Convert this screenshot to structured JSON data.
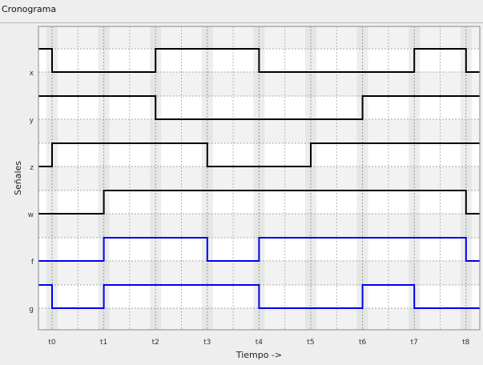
{
  "window": {
    "title": "Cronograma"
  },
  "chart_data": {
    "type": "line",
    "title": "",
    "xlabel": "Tiempo ->",
    "ylabel": "Señales",
    "grid": true,
    "categories": [
      "t0",
      "t1",
      "t2",
      "t3",
      "t4",
      "t5",
      "t6",
      "t7",
      "t8"
    ],
    "series": [
      {
        "name": "x",
        "color": "#000000",
        "initial": 1,
        "values": [
          0,
          0,
          1,
          1,
          0,
          0,
          0,
          1,
          0
        ]
      },
      {
        "name": "y",
        "color": "#000000",
        "initial": 1,
        "values": [
          1,
          1,
          0,
          0,
          0,
          0,
          1,
          1,
          1
        ]
      },
      {
        "name": "z",
        "color": "#000000",
        "initial": 0,
        "values": [
          1,
          1,
          1,
          0,
          0,
          1,
          1,
          1,
          1
        ]
      },
      {
        "name": "w",
        "color": "#000000",
        "initial": 0,
        "values": [
          0,
          1,
          1,
          1,
          1,
          1,
          1,
          1,
          0
        ]
      },
      {
        "name": "f",
        "color": "#0000ee",
        "initial": 0,
        "values": [
          0,
          1,
          1,
          0,
          1,
          1,
          1,
          1,
          0
        ]
      },
      {
        "name": "g",
        "color": "#0000ee",
        "initial": 1,
        "values": [
          0,
          1,
          1,
          1,
          0,
          0,
          1,
          0,
          0
        ]
      }
    ]
  }
}
